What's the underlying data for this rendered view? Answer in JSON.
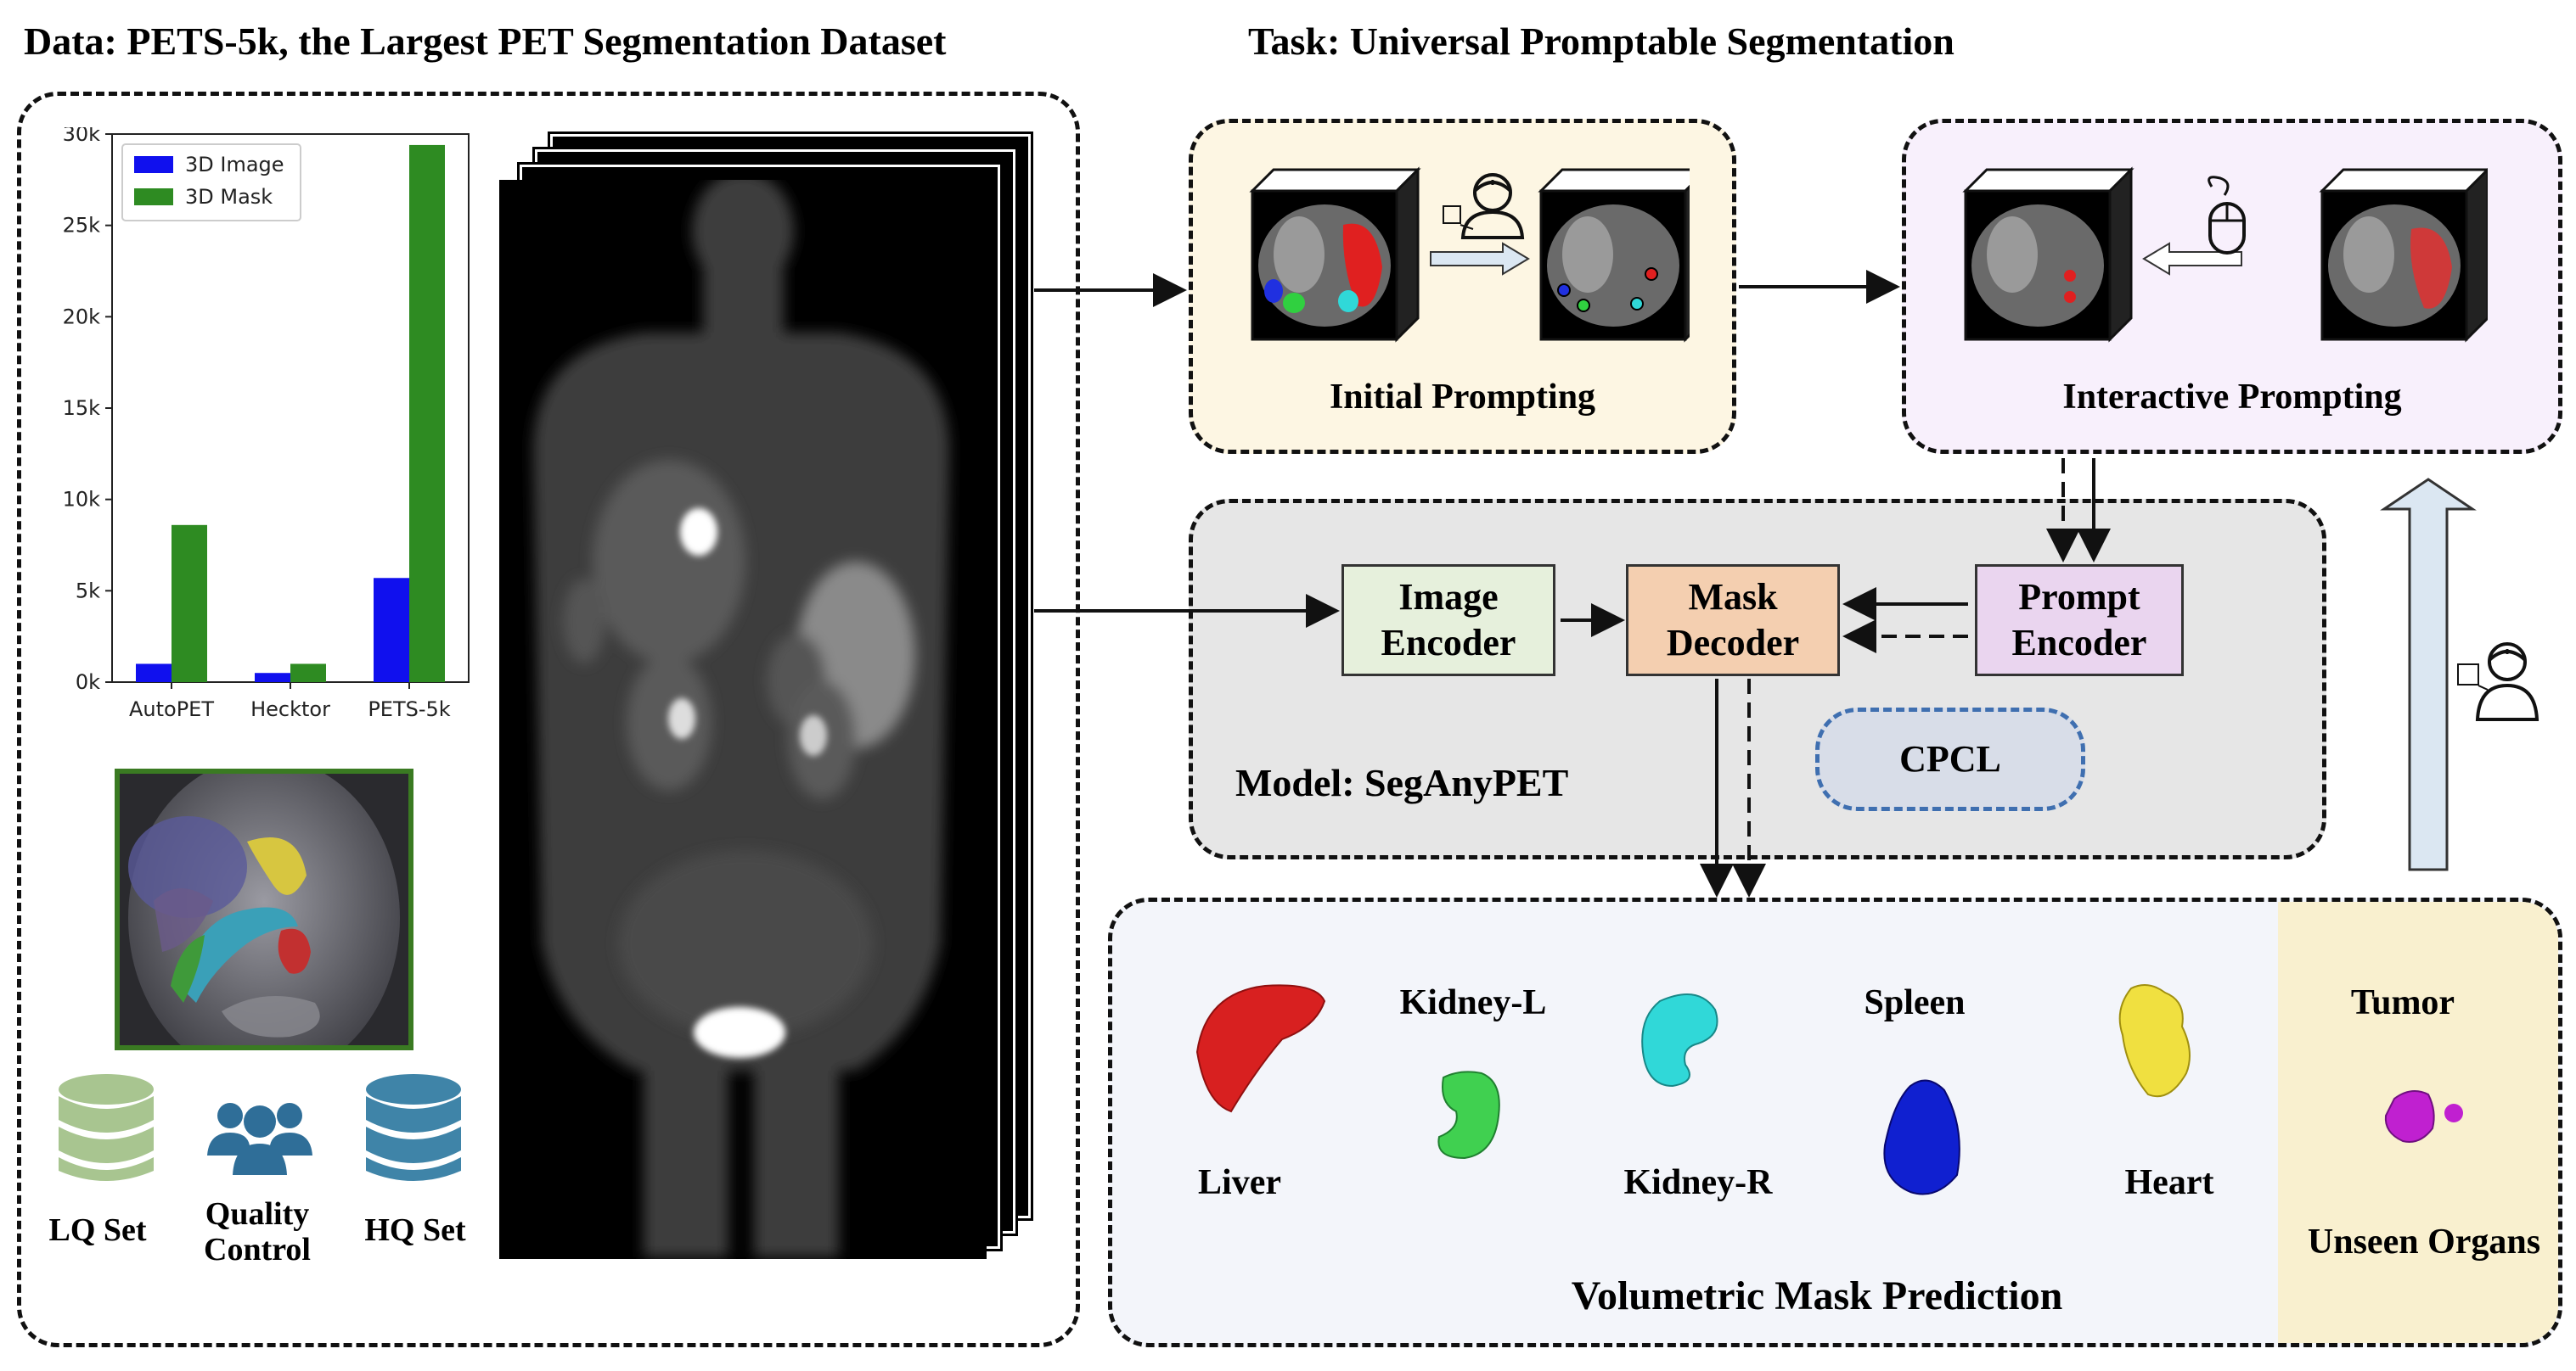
{
  "data_title": "Data:  PETS-5k, the Largest PET Segmentation Dataset",
  "task_title": "Task:  Universal Promptable Segmentation",
  "chart_data": {
    "type": "bar",
    "categories": [
      "AutoPET",
      "Hecktor",
      "PETS-5k"
    ],
    "series": [
      {
        "name": "3D Image",
        "values": [
          1000,
          500,
          5700
        ],
        "color": "#1010ee"
      },
      {
        "name": "3D Mask",
        "values": [
          8600,
          1000,
          29400
        ],
        "color": "#2e8b22"
      }
    ],
    "ylim": [
      0,
      30000
    ],
    "yticks": [
      "0k",
      "5k",
      "10k",
      "15k",
      "20k",
      "25k",
      "30k"
    ],
    "legend": "top-left"
  },
  "sets": {
    "lq": "LQ Set",
    "qc_line1": "Quality",
    "qc_line2": "Control",
    "hq": "HQ Set"
  },
  "initial_prompting": "Initial Prompting",
  "interactive_prompting": "Interactive Prompting",
  "model": {
    "label": "Model:  SegAnyPET",
    "image_encoder_1": "Image",
    "image_encoder_2": "Encoder",
    "mask_decoder_1": "Mask",
    "mask_decoder_2": "Decoder",
    "prompt_encoder_1": "Prompt",
    "prompt_encoder_2": "Encoder",
    "cpcl": "CPCL"
  },
  "prediction": {
    "title": "Volumetric Mask Prediction",
    "liver": "Liver",
    "kidney_l": "Kidney-L",
    "kidney_r": "Kidney-R",
    "spleen": "Spleen",
    "heart": "Heart",
    "tumor": "Tumor",
    "unseen": "Unseen Organs"
  },
  "colors": {
    "initial_bg": "#fdf6e3",
    "interactive_bg": "#f8f0fc",
    "model_bg": "#e6e6e6",
    "prediction_bg": "#f3f5fa",
    "unseen_bg": "#f9f0cf",
    "image_encoder": "#e6f0dc",
    "mask_decoder": "#f4cfb0",
    "prompt_encoder": "#ead5ef",
    "cpcl_border": "#3f6fb0",
    "lq_db": "#a8c590",
    "hq_db": "#3f84a8",
    "qc_people": "#2f6e98"
  }
}
